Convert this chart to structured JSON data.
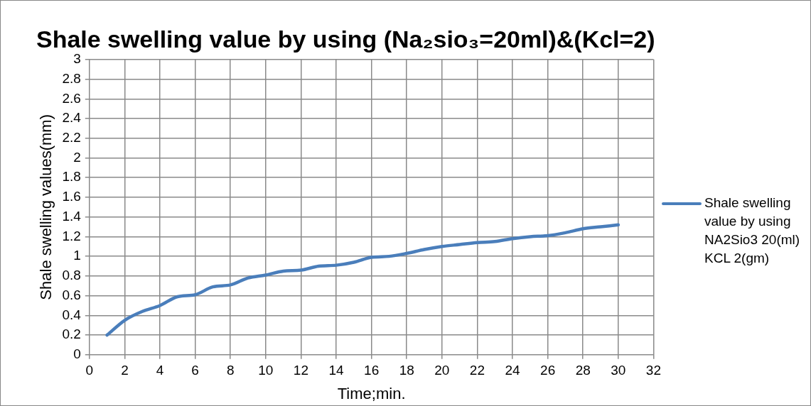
{
  "chart_data": {
    "type": "line",
    "title": "Shale swelling value by using (Na₂sio₃=20ml)&(Kcl=2)",
    "xlabel": "Time;min.",
    "ylabel": "Shale swelling values(mm)",
    "x": [
      1,
      2,
      3,
      4,
      5,
      6,
      7,
      8,
      9,
      10,
      11,
      12,
      13,
      14,
      15,
      16,
      17,
      18,
      19,
      20,
      21,
      22,
      23,
      24,
      25,
      26,
      27,
      28,
      29,
      30
    ],
    "series": [
      {
        "name": "Shale swelling value by using NA2Sio3 20(ml) KCL 2(gm)",
        "color": "#4a7ebb",
        "values": [
          0.2,
          0.35,
          0.44,
          0.5,
          0.59,
          0.61,
          0.69,
          0.71,
          0.78,
          0.81,
          0.85,
          0.86,
          0.9,
          0.91,
          0.94,
          0.99,
          1.0,
          1.03,
          1.07,
          1.1,
          1.12,
          1.14,
          1.15,
          1.18,
          1.2,
          1.21,
          1.24,
          1.28,
          1.3,
          1.32
        ]
      }
    ],
    "xlim": [
      0,
      32
    ],
    "xticks": [
      0,
      2,
      4,
      6,
      8,
      10,
      12,
      14,
      16,
      18,
      20,
      22,
      24,
      26,
      28,
      30,
      32
    ],
    "ylim": [
      0,
      3
    ],
    "yticks": [
      0,
      0.2,
      0.4,
      0.6,
      0.8,
      1,
      1.2,
      1.4,
      1.6,
      1.8,
      2,
      2.2,
      2.4,
      2.6,
      2.8,
      3
    ],
    "grid": true,
    "legend": "right",
    "marker": "none",
    "line_style": "solid"
  }
}
